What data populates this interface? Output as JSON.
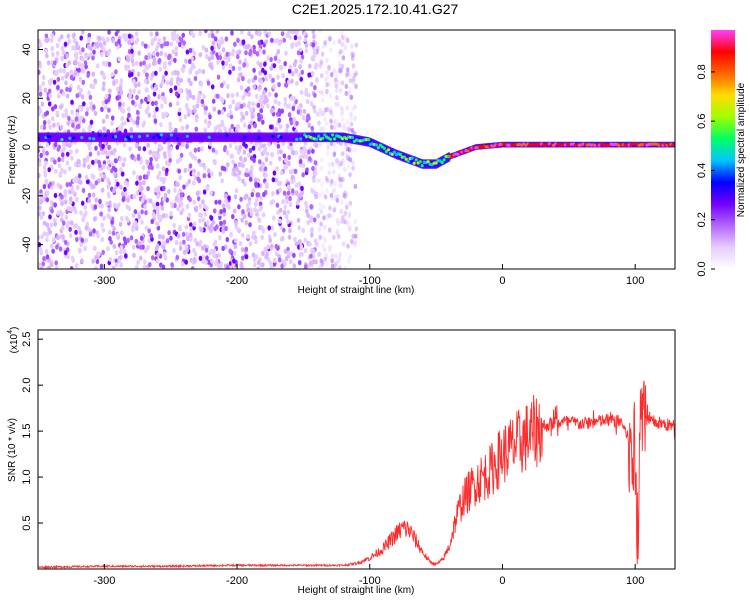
{
  "figure": {
    "title": "C2E1.2025.172.10.41.G27"
  },
  "chart_data": [
    {
      "type": "heatmap",
      "title": "C2E1.2025.172.10.41.G27",
      "xlabel": "Height of straight line (km)",
      "ylabel": "Frequency (Hz)",
      "xlim": [
        -350,
        130
      ],
      "ylim": [
        -50,
        48
      ],
      "x_ticks": [
        -300,
        -200,
        -100,
        0,
        100
      ],
      "y_ticks": [
        -40,
        -20,
        0,
        20,
        40
      ],
      "colorbar": {
        "label": "Normalized spectral amplitude",
        "range": [
          0,
          0.97
        ],
        "ticks": [
          0.0,
          0.2,
          0.4,
          0.6,
          0.8
        ],
        "colors": [
          "#ffffff",
          "#e6ccff",
          "#b366ff",
          "#7000ff",
          "#0000ff",
          "#00c8ff",
          "#00ff64",
          "#a0ff00",
          "#ffdc00",
          "#ff6400",
          "#ff0000",
          "#ff40ff"
        ]
      },
      "ridge": {
        "description_points_x": [
          -350,
          -150,
          -120,
          -100,
          -80,
          -60,
          -50,
          -40,
          -20,
          0,
          50,
          100,
          130
        ],
        "description_points_freq": [
          4,
          4,
          4,
          2,
          -3,
          -7,
          -7,
          -4,
          0,
          1,
          1,
          1,
          1
        ]
      },
      "noise_extent_x": [
        -350,
        -120
      ],
      "grid": false
    },
    {
      "type": "line",
      "xlabel": "Height of straight line (km)",
      "ylabel": "SNR (10 * v/v)",
      "y_multiplier_label": "(x10",
      "y_multiplier_exp": "4",
      "xlim": [
        -350,
        130
      ],
      "ylim": [
        0,
        2.6
      ],
      "x_ticks": [
        -300,
        -200,
        -100,
        0,
        100
      ],
      "y_ticks": [
        0.5,
        1.0,
        1.5,
        2.0,
        2.5
      ],
      "color": "#ff2a2a",
      "grid": false,
      "series": [
        {
          "x": [
            -350,
            -300,
            -250,
            -200,
            -150,
            -120,
            -110,
            -100,
            -90,
            -80,
            -75,
            -70,
            -65,
            -60,
            -55,
            -50,
            -45,
            -40,
            -35,
            -30,
            -25,
            -20,
            -15,
            -10,
            -5,
            0,
            10,
            20,
            30,
            40,
            50,
            60,
            70,
            80,
            90,
            95,
            100,
            102,
            104,
            106,
            110,
            115,
            120,
            130
          ],
          "y": [
            0.02,
            0.03,
            0.03,
            0.04,
            0.04,
            0.04,
            0.06,
            0.12,
            0.22,
            0.38,
            0.45,
            0.42,
            0.3,
            0.18,
            0.08,
            0.05,
            0.1,
            0.25,
            0.55,
            0.75,
            0.85,
            0.95,
            1.0,
            1.05,
            1.15,
            1.25,
            1.35,
            1.45,
            1.55,
            1.6,
            1.6,
            1.58,
            1.6,
            1.62,
            1.6,
            1.4,
            1.2,
            0.3,
            1.7,
            1.65,
            1.6,
            1.6,
            1.58,
            1.55
          ]
        }
      ]
    }
  ]
}
